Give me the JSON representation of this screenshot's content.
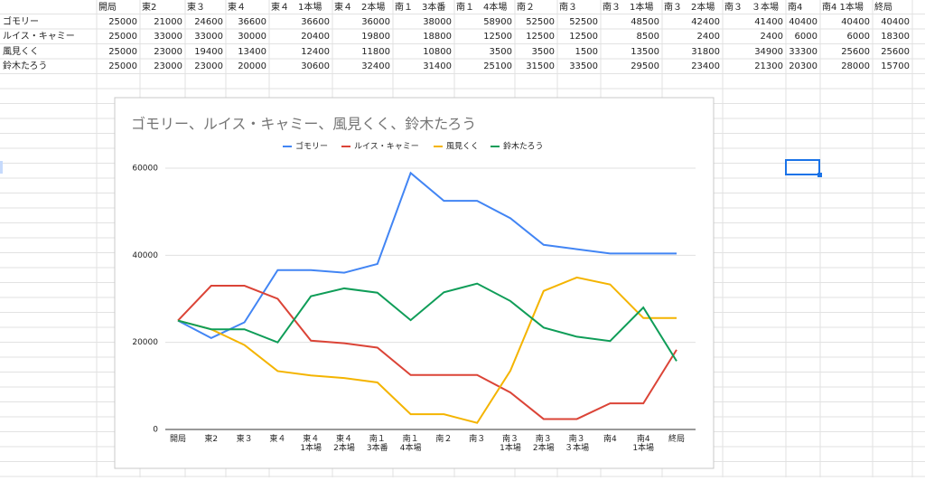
{
  "table": {
    "header": [
      "開局",
      "東2",
      "東３",
      "東４",
      "東４　1本場",
      "東４　2本場",
      "南１　3本番",
      "南１　4本場",
      "南２",
      "南３",
      "南３　1本場",
      "南３　2本場",
      "南３　３本場",
      "南4",
      "南4 1本場",
      "終局"
    ],
    "rows": [
      [
        "ゴモリー",
        25000,
        21000,
        24600,
        36600,
        36600,
        36000,
        38000,
        58900,
        52500,
        52500,
        48500,
        42400,
        41400,
        40400,
        40400,
        40400
      ],
      [
        "ルイス・キャミー",
        25000,
        33000,
        33000,
        30000,
        20400,
        19800,
        18800,
        12500,
        12500,
        12500,
        8500,
        2400,
        2400,
        6000,
        6000,
        18300
      ],
      [
        "風見くく",
        25000,
        23000,
        19400,
        13400,
        12400,
        11800,
        10800,
        3500,
        3500,
        1500,
        13500,
        31800,
        34900,
        33300,
        25600,
        25600
      ],
      [
        "鈴木たろう",
        25000,
        23000,
        23000,
        20000,
        30600,
        32400,
        31400,
        25100,
        31500,
        33500,
        29500,
        23400,
        21300,
        20300,
        28000,
        15700
      ]
    ]
  },
  "chart_data": {
    "type": "line",
    "title": "ゴモリー、ルイス・キャミー、風見くく、鈴木たろう",
    "categories": [
      "開局",
      "東2",
      "東３",
      "東４",
      "東４\n1本場",
      "東４\n2本場",
      "南１\n3本番",
      "南１\n4本場",
      "南２",
      "南３",
      "南３\n1本場",
      "南３\n2本場",
      "南３\n３本場",
      "南4",
      "南4\n1本場",
      "終局"
    ],
    "series": [
      {
        "name": "ゴモリー",
        "color": "#4285f4",
        "values": [
          25000,
          21000,
          24600,
          36600,
          36600,
          36000,
          38000,
          58900,
          52500,
          52500,
          48500,
          42400,
          41400,
          40400,
          40400,
          40400
        ]
      },
      {
        "name": "ルイス・キャミー",
        "color": "#db4437",
        "values": [
          25000,
          33000,
          33000,
          30000,
          20400,
          19800,
          18800,
          12500,
          12500,
          12500,
          8500,
          2400,
          2400,
          6000,
          6000,
          18300
        ]
      },
      {
        "name": "風見くく",
        "color": "#f4b400",
        "values": [
          25000,
          23000,
          19400,
          13400,
          12400,
          11800,
          10800,
          3500,
          3500,
          1500,
          13500,
          31800,
          34900,
          33300,
          25600,
          25600
        ]
      },
      {
        "name": "鈴木たろう",
        "color": "#0f9d58",
        "values": [
          25000,
          23000,
          23000,
          20000,
          30600,
          32400,
          31400,
          25100,
          31500,
          33500,
          29500,
          23400,
          21300,
          20300,
          28000,
          15700
        ]
      }
    ],
    "ylim": [
      0,
      60000
    ],
    "yticks": [
      0,
      20000,
      40000,
      60000
    ],
    "grid": true,
    "legend": "top"
  }
}
